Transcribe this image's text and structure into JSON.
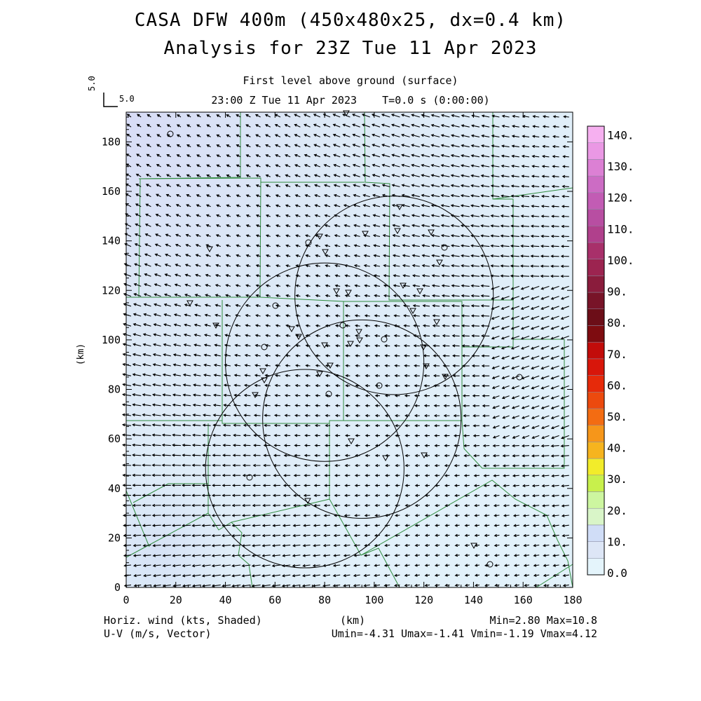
{
  "header": {
    "title_line1": "CASA DFW 400m (450x480x25, dx=0.4 km)",
    "title_line2": "Analysis for 23Z Tue 11 Apr 2023",
    "subtitle_level": "First level above ground (surface)",
    "subtitle_time": "23:00 Z Tue 11 Apr 2023    T=0.0 s (0:00:00)"
  },
  "vector_scale": {
    "vertical": "5.0",
    "horizontal": "5.0"
  },
  "axes": {
    "x_label": "(km)",
    "y_label": "(km)",
    "x_ticks": [
      "0",
      "20",
      "40",
      "60",
      "80",
      "100",
      "120",
      "140",
      "160",
      "180"
    ],
    "y_ticks": [
      "0",
      "20",
      "40",
      "60",
      "80",
      "100",
      "120",
      "140",
      "160",
      "180"
    ],
    "x_range": [
      0,
      180
    ],
    "y_range": [
      0,
      192
    ]
  },
  "colorbar": {
    "labels": [
      "0.0",
      "10.",
      "20.",
      "30.",
      "40.",
      "50.",
      "60.",
      "70.",
      "80.",
      "90.",
      "100.",
      "110.",
      "120.",
      "130.",
      "140."
    ],
    "colors": [
      "#e4f4fb",
      "#dde6f6",
      "#d0ddf7",
      "#d9f5c8",
      "#cdf6a0",
      "#c8f04c",
      "#f2ec2a",
      "#f6b41e",
      "#f6961a",
      "#f36c12",
      "#ec4a0e",
      "#e62a0a",
      "#d8160a",
      "#c20c0a",
      "#7e0c10",
      "#6c0e18",
      "#781428",
      "#8a1c3c",
      "#9c2450",
      "#a8306a",
      "#b0408c",
      "#b84ea2",
      "#c25cb4",
      "#cc6cc4",
      "#dc80d4",
      "#ea98e4",
      "#f6b0f0"
    ]
  },
  "footer": {
    "left_line1": "Horiz. wind (kts, Shaded)",
    "left_line2": "U-V (m/s, Vector)",
    "center": "(km)",
    "right_line1": "Min=2.80 Max=10.8",
    "right_line2": "Umin=-4.31 Umax=-1.41 Vmin=-1.19 Vmax=4.12"
  },
  "map": {
    "radar_rings_km": [
      {
        "cx": 72,
        "cy": 48,
        "r": 40
      },
      {
        "cx": 95,
        "cy": 68,
        "r": 40
      },
      {
        "cx": 80,
        "cy": 91,
        "r": 40
      },
      {
        "cx": 108,
        "cy": 118,
        "r": 40
      }
    ]
  }
}
